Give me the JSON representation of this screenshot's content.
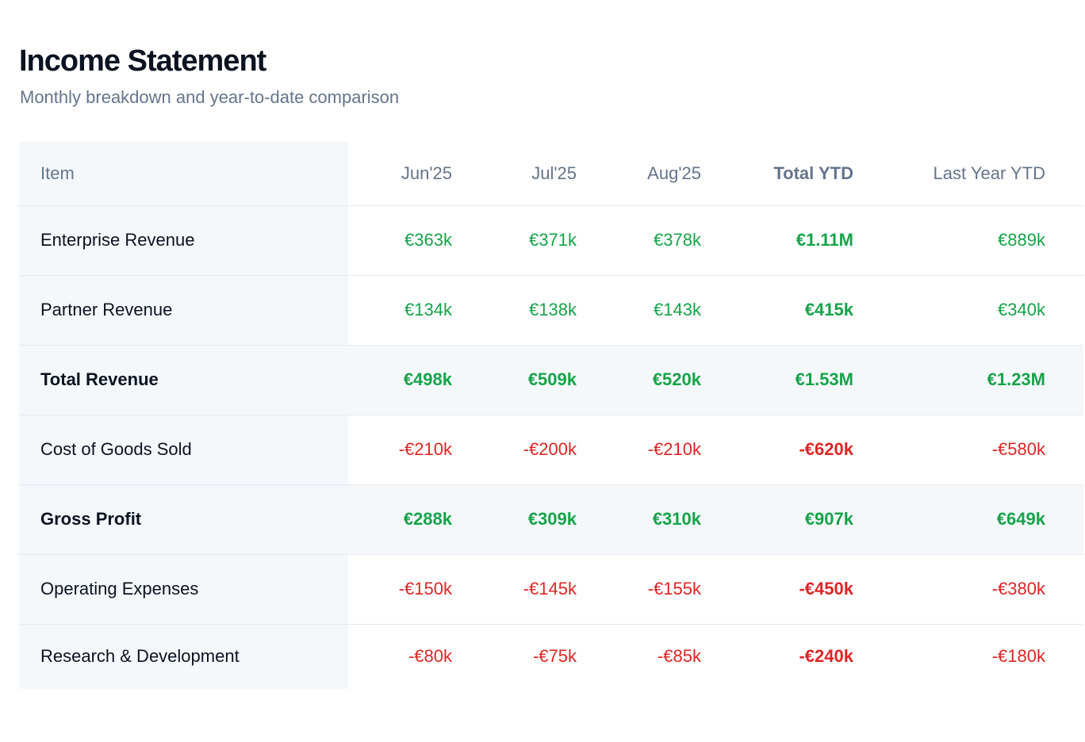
{
  "header": {
    "title": "Income Statement",
    "subtitle": "Monthly breakdown and year-to-date comparison"
  },
  "colors": {
    "positive": "#16a34a",
    "negative": "#dc2626",
    "muted": "#64748b",
    "row_shade": "#f5f8fb"
  },
  "table": {
    "columns": {
      "item": "Item",
      "m1": "Jun'25",
      "m2": "Jul'25",
      "m3": "Aug'25",
      "ytd": "Total YTD",
      "last_year": "Last Year YTD"
    },
    "rows": [
      {
        "label": "Enterprise Revenue",
        "m1": "€363k",
        "m2": "€371k",
        "m3": "€378k",
        "ytd": "€1.11M",
        "last_year": "€889k",
        "kind": "revenue"
      },
      {
        "label": "Partner Revenue",
        "m1": "€134k",
        "m2": "€138k",
        "m3": "€143k",
        "ytd": "€415k",
        "last_year": "€340k",
        "kind": "revenue"
      },
      {
        "label": "Total Revenue",
        "m1": "€498k",
        "m2": "€509k",
        "m3": "€520k",
        "ytd": "€1.53M",
        "last_year": "€1.23M",
        "kind": "subtotal"
      },
      {
        "label": "Cost of Goods Sold",
        "m1": "-€210k",
        "m2": "-€200k",
        "m3": "-€210k",
        "ytd": "-€620k",
        "last_year": "-€580k",
        "kind": "expense"
      },
      {
        "label": "Gross Profit",
        "m1": "€288k",
        "m2": "€309k",
        "m3": "€310k",
        "ytd": "€907k",
        "last_year": "€649k",
        "kind": "subtotal"
      },
      {
        "label": "Operating Expenses",
        "m1": "-€150k",
        "m2": "-€145k",
        "m3": "-€155k",
        "ytd": "-€450k",
        "last_year": "-€380k",
        "kind": "expense"
      },
      {
        "label": "Research & Development",
        "m1": "-€80k",
        "m2": "-€75k",
        "m3": "-€85k",
        "ytd": "-€240k",
        "last_year": "-€180k",
        "kind": "expense"
      }
    ]
  }
}
